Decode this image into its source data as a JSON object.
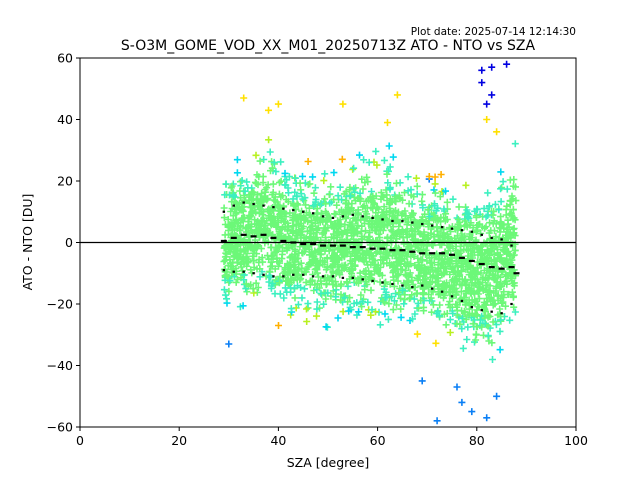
{
  "chart_data": {
    "type": "scatter",
    "title": "S-O3M_GOME_VOD_XX_M01_20250713Z ATO - NTO vs SZA",
    "plot_date": "Plot date: 2025-07-14 12:14:30",
    "xlabel": "SZA [degree]",
    "ylabel": "ATO - NTO [DU]",
    "xlim": [
      0,
      100
    ],
    "ylim": [
      -60,
      60
    ],
    "xticks": [
      0,
      20,
      40,
      60,
      80,
      100
    ],
    "yticks": [
      -60,
      -40,
      -20,
      0,
      20,
      40,
      60
    ],
    "grid": false,
    "legend": "none",
    "marker": "+",
    "colormap": [
      "#0000e0",
      "#0a7ff5",
      "#00d8f0",
      "#3cf0c0",
      "#6cf878",
      "#b8f020",
      "#ffe000",
      "#ffb000"
    ],
    "zero_line": 0,
    "point_cloud": {
      "sza_range": [
        29,
        88
      ],
      "upper_envelope": [
        [
          29,
          27
        ],
        [
          35,
          33
        ],
        [
          38,
          40
        ],
        [
          42,
          30
        ],
        [
          48,
          28
        ],
        [
          55,
          32
        ],
        [
          60,
          35
        ],
        [
          65,
          33
        ],
        [
          70,
          25
        ],
        [
          75,
          26
        ],
        [
          80,
          24
        ],
        [
          85,
          32
        ],
        [
          88,
          40
        ]
      ],
      "lower_envelope": [
        [
          29,
          -27
        ],
        [
          35,
          -25
        ],
        [
          40,
          -30
        ],
        [
          45,
          -30
        ],
        [
          50,
          -33
        ],
        [
          55,
          -30
        ],
        [
          60,
          -32
        ],
        [
          65,
          -33
        ],
        [
          70,
          -35
        ],
        [
          75,
          -38
        ],
        [
          80,
          -42
        ],
        [
          85,
          -45
        ],
        [
          88,
          -35
        ]
      ],
      "outliers": [
        {
          "sza": 81,
          "diff": 52
        },
        {
          "sza": 82,
          "diff": 45
        },
        {
          "sza": 83,
          "diff": 48
        },
        {
          "sza": 82,
          "diff": 40
        },
        {
          "sza": 84,
          "diff": 36
        },
        {
          "sza": 81,
          "diff": 56
        },
        {
          "sza": 83,
          "diff": 57
        },
        {
          "sza": 86,
          "diff": 58
        },
        {
          "sza": 40,
          "diff": 45
        },
        {
          "sza": 38,
          "diff": 43
        },
        {
          "sza": 33,
          "diff": 47
        },
        {
          "sza": 62,
          "diff": 39
        },
        {
          "sza": 64,
          "diff": 48
        },
        {
          "sza": 53,
          "diff": 45
        },
        {
          "sza": 76,
          "diff": -47
        },
        {
          "sza": 79,
          "diff": -55
        },
        {
          "sza": 77,
          "diff": -52
        },
        {
          "sza": 82,
          "diff": -57
        },
        {
          "sza": 84,
          "diff": -50
        },
        {
          "sza": 30,
          "diff": -33
        },
        {
          "sza": 72,
          "diff": -58
        },
        {
          "sza": 69,
          "diff": -45
        }
      ]
    },
    "mean_curve": {
      "sza": [
        29,
        31,
        33,
        35,
        37,
        39,
        41,
        43,
        45,
        47,
        49,
        51,
        53,
        55,
        57,
        59,
        61,
        63,
        65,
        67,
        69,
        71,
        73,
        75,
        77,
        79,
        81,
        83,
        85,
        87,
        88
      ],
      "diff": [
        0.5,
        1.5,
        2.5,
        2.0,
        2.5,
        1.5,
        0.5,
        0,
        -0.5,
        -0.5,
        -1,
        -1,
        -1,
        -1.5,
        -1.5,
        -2,
        -2,
        -2.5,
        -2.5,
        -3,
        -3.5,
        -3.5,
        -3.5,
        -4,
        -5,
        -6,
        -7,
        -8,
        -8.5,
        -8,
        -10
      ]
    },
    "std_upper_curve": {
      "sza": [
        29,
        31,
        33,
        35,
        37,
        39,
        41,
        43,
        45,
        47,
        49,
        51,
        53,
        55,
        57,
        59,
        61,
        63,
        65,
        67,
        69,
        71,
        73,
        75,
        77,
        79,
        81,
        83,
        85,
        87
      ],
      "diff": [
        10,
        12,
        13,
        12.5,
        12,
        11.5,
        11,
        10.5,
        10,
        9.5,
        8.5,
        8,
        8.5,
        9,
        8.5,
        8,
        7.5,
        7,
        7,
        6.5,
        6,
        5.5,
        5,
        4.5,
        4,
        3.5,
        2.5,
        1.5,
        1,
        -1
      ]
    },
    "std_lower_curve": {
      "sza": [
        29,
        31,
        33,
        35,
        37,
        39,
        41,
        43,
        45,
        47,
        49,
        51,
        53,
        55,
        57,
        59,
        61,
        63,
        65,
        67,
        69,
        71,
        73,
        75,
        77,
        79,
        81,
        83,
        85,
        87
      ],
      "diff": [
        -9,
        -9.5,
        -9.5,
        -10,
        -10.5,
        -11,
        -11,
        -10.5,
        -10.5,
        -11,
        -11,
        -11,
        -11.5,
        -11.5,
        -12,
        -12.5,
        -13,
        -13.5,
        -14,
        -14.5,
        -14,
        -15,
        -16,
        -17.5,
        -19,
        -21,
        -22,
        -22.5,
        -23,
        -20
      ]
    }
  }
}
